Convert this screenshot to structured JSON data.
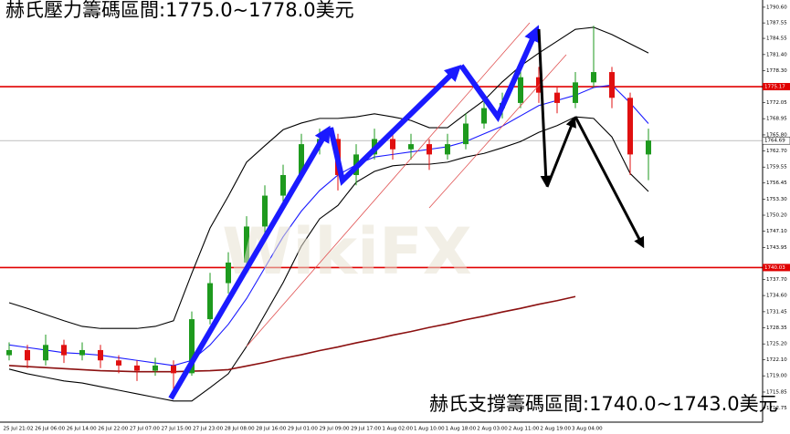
{
  "chart_data": {
    "type": "candlestick",
    "title": "赫氏壓力籌碼區間:1775.0~1778.0美元",
    "subtitle": "赫氏支撐籌碼區間:1740.0~1743.0美元",
    "watermark": "WikiFX",
    "up_color": "#1e9a1e",
    "down_color": "#e01010",
    "candles": [
      [
        1723,
        1725.5,
        1722,
        1724
      ],
      [
        1724,
        1725,
        1720.5,
        1722
      ],
      [
        1722,
        1727,
        1721,
        1725
      ],
      [
        1725,
        1726,
        1721.5,
        1723
      ],
      [
        1723,
        1725.5,
        1722,
        1724
      ],
      [
        1724,
        1725,
        1720.5,
        1722
      ],
      [
        1722,
        1723,
        1719.5,
        1721
      ],
      [
        1721,
        1722,
        1718,
        1720
      ],
      [
        1720,
        1722.5,
        1719,
        1721
      ],
      [
        1721,
        1722,
        1716,
        1719.5
      ],
      [
        1719.5,
        1731.5,
        1719,
        1730
      ],
      [
        1730,
        1739,
        1729,
        1737
      ],
      [
        1737,
        1743,
        1735,
        1741
      ],
      [
        1741,
        1750,
        1740,
        1748
      ],
      [
        1748,
        1756,
        1746,
        1754
      ],
      [
        1754,
        1760,
        1752,
        1758
      ],
      [
        1758,
        1766,
        1757,
        1764
      ],
      [
        1764,
        1767,
        1762,
        1765
      ],
      [
        1765,
        1766,
        1755,
        1758
      ],
      [
        1758,
        1764,
        1756,
        1762
      ],
      [
        1762,
        1767,
        1761,
        1765
      ],
      [
        1765,
        1767,
        1761,
        1763
      ],
      [
        1763,
        1766,
        1761,
        1764
      ],
      [
        1764,
        1765,
        1759,
        1762
      ],
      [
        1762,
        1766,
        1761,
        1764
      ],
      [
        1764,
        1770,
        1763,
        1768
      ],
      [
        1768,
        1773,
        1767,
        1771
      ],
      [
        1771,
        1774,
        1769,
        1772
      ],
      [
        1772,
        1780,
        1771,
        1777
      ],
      [
        1777,
        1779,
        1772,
        1774
      ],
      [
        1774,
        1775,
        1770,
        1772
      ],
      [
        1772,
        1778,
        1771,
        1776
      ],
      [
        1776,
        1787,
        1775,
        1778
      ],
      [
        1778,
        1779,
        1771,
        1773
      ],
      [
        1773,
        1774,
        1758,
        1762
      ],
      [
        1762,
        1767,
        1757,
        1764.69
      ]
    ],
    "series": [
      {
        "color": "#000000",
        "values": [
          1733.2,
          1732.1,
          1730.9,
          1729.7,
          1728.6,
          1728.2,
          1728.2,
          1728.2,
          1728.6,
          1729.7,
          1738.9,
          1747.7,
          1753.9,
          1760.5,
          1763.7,
          1766.8,
          1768.1,
          1769,
          1769,
          1769.3,
          1769.9,
          1769.3,
          1768.6,
          1767.2,
          1767.2,
          1769.9,
          1772.5,
          1776.1,
          1779.2,
          1781.7,
          1784,
          1786.3,
          1786.7,
          1785.3,
          1783.5,
          1781.7
        ]
      },
      {
        "color": "#000000",
        "values": [
          1720.3,
          1719.4,
          1718.7,
          1718,
          1717.6,
          1716.9,
          1716.2,
          1715.5,
          1714.8,
          1714.1,
          1714.1,
          1716.7,
          1719.4,
          1724.7,
          1730.9,
          1737.1,
          1744.2,
          1749.5,
          1752.1,
          1756.6,
          1758.7,
          1759.8,
          1760.1,
          1760.1,
          1760.5,
          1761.5,
          1762.2,
          1763.3,
          1764.5,
          1766.3,
          1767.6,
          1769.3,
          1769,
          1765.4,
          1758.3,
          1754.8
        ]
      },
      {
        "color": "#1a1aff",
        "values": [
          1725,
          1724.5,
          1724,
          1723.5,
          1723.3,
          1723,
          1722.5,
          1722,
          1721.5,
          1721,
          1722,
          1725,
          1729,
          1734,
          1740,
          1746,
          1751,
          1755,
          1758,
          1760,
          1761.5,
          1762,
          1762.5,
          1763,
          1763.5,
          1764.5,
          1766,
          1767.5,
          1769.5,
          1771.5,
          1772.5,
          1773.5,
          1775,
          1775.5,
          1772,
          1768
        ]
      },
      {
        "color": "#8b1010",
        "values": [
          1721,
          1720.8,
          1720.6,
          1720.4,
          1720.2,
          1720,
          1719.9,
          1719.8,
          1719.8,
          1719.8,
          1719.9,
          1720,
          1720.2,
          1720.9,
          1721.6,
          1722.4,
          1723.1,
          1723.9,
          1724.6,
          1725.4,
          1726.1,
          1726.9,
          1727.6,
          1728.4,
          1729.1,
          1729.9,
          1730.6,
          1731.4,
          1732.1,
          1732.9,
          1733.6,
          1734.4,
          null,
          null,
          null,
          null
        ]
      }
    ],
    "hlines": [
      1775.17,
      1740.03
    ],
    "hline_color": "#e00000",
    "current_price": 1764.69,
    "ylim": [
      1710,
      1792
    ],
    "yticks": [
      {
        "value": 1790.6,
        "label": "1790.60"
      },
      1787.55,
      1784.55,
      {
        "value": 1781.4,
        "label": "1781.40"
      },
      {
        "value": 1778.3,
        "label": "1778.30"
      },
      1772.05,
      1768.95,
      {
        "value": 1765.8,
        "label": "1765.80"
      },
      {
        "value": 1762.7,
        "label": "1762.70"
      },
      1759.55,
      1756.45,
      {
        "value": 1753.3,
        "label": "1753.30"
      },
      {
        "value": 1750.2,
        "label": "1750.20"
      },
      {
        "value": 1747.1,
        "label": "1747.10"
      },
      1743.95,
      {
        "value": 1737.7,
        "label": "1737.70"
      },
      {
        "value": 1734.6,
        "label": "1734.60"
      },
      1731.45,
      1728.35,
      {
        "value": 1725.2,
        "label": "1725.20"
      },
      {
        "value": 1722.1,
        "label": "1722.10"
      },
      {
        "value": 1719,
        "label": "1719.00"
      },
      1715.85,
      1712.75
    ],
    "xlabels": [
      "25 Jul 21:02",
      "26 Jul 06:00",
      "26 Jul 14:00",
      "26 Jul 22:00",
      "27 Jul 07:00",
      "27 Jul 15:00",
      "27 Jul 23:00",
      "28 Jul 08:00",
      "28 Jul 16:00",
      "29 Jul 01:00",
      "29 Jul 09:00",
      "29 Jul 17:00",
      "1 Aug 02:00",
      "1 Aug 10:00",
      "1 Aug 18:00",
      "2 Aug 03:00",
      "2 Aug 11:00",
      "2 Aug 19:00",
      "3 Aug 04:00"
    ]
  }
}
